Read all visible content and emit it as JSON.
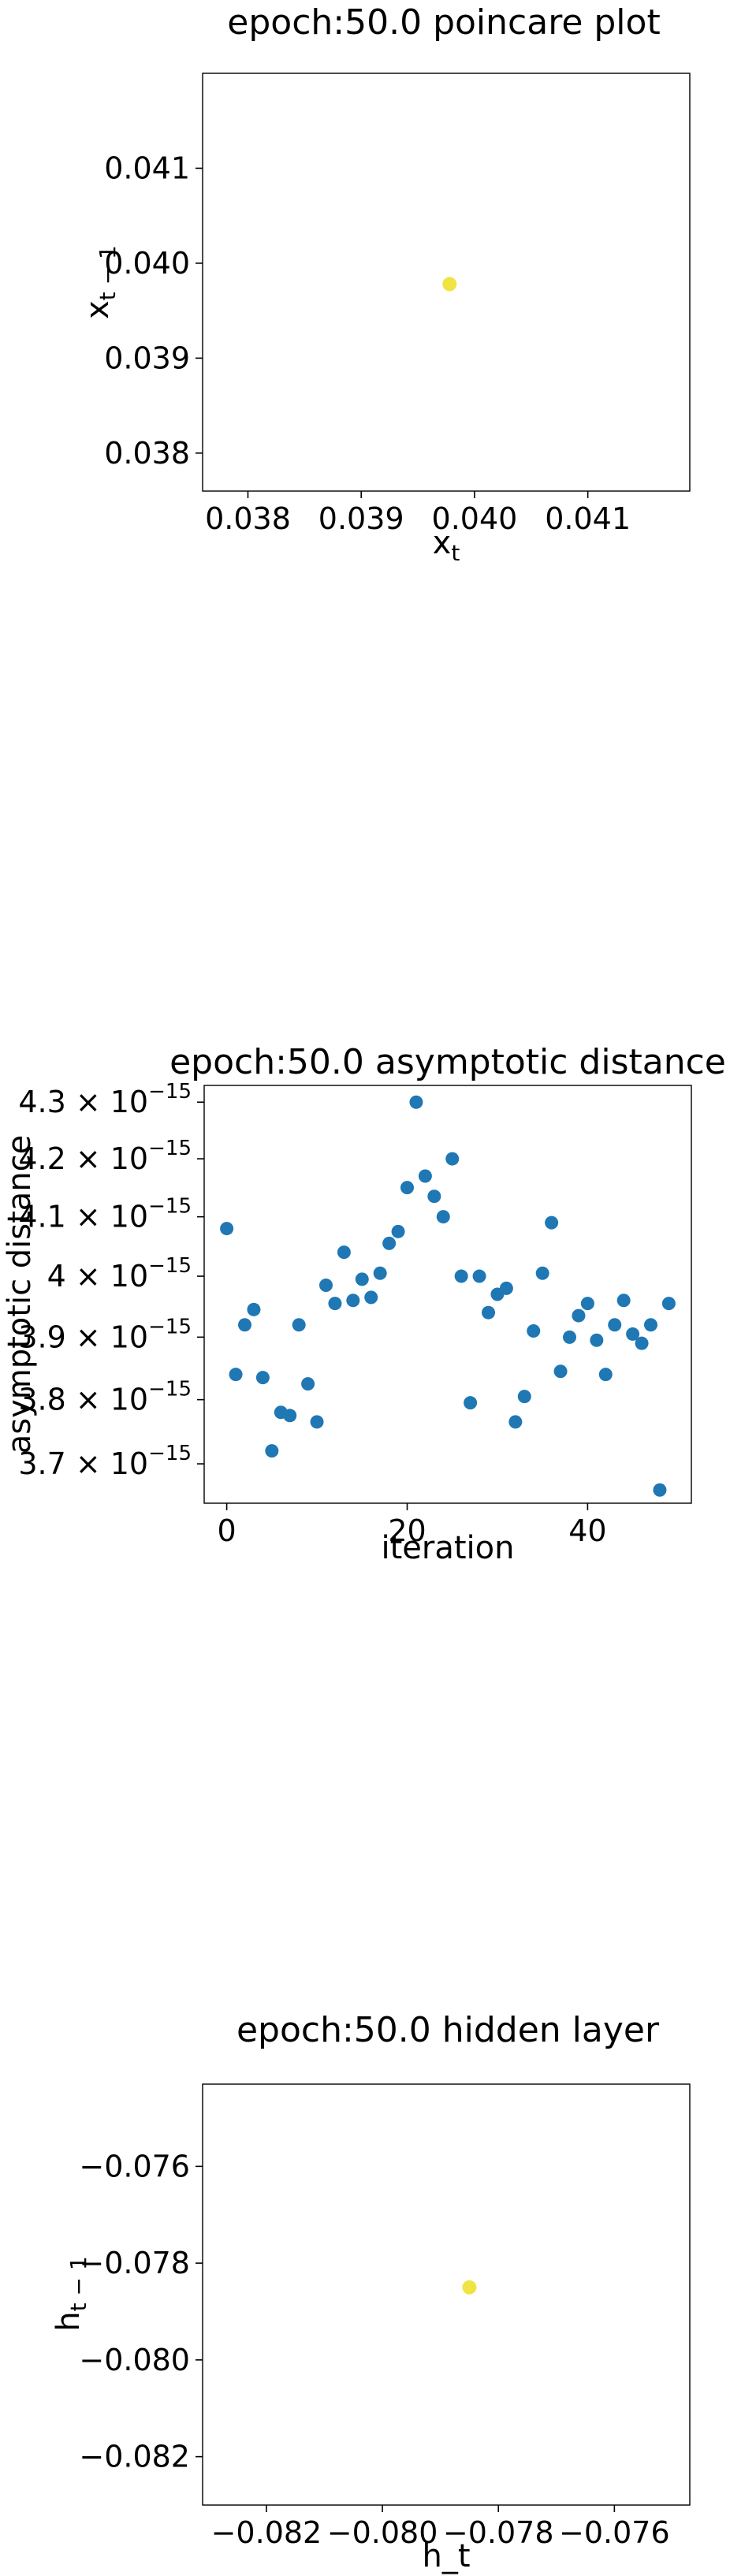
{
  "chart_data": [
    {
      "type": "scatter",
      "title": "epoch:50.0 poincare plot",
      "xlabel": "x_t",
      "ylabel": "x_{t-1}",
      "xlim": [
        0.0376,
        0.0419
      ],
      "ylim": [
        0.0376,
        0.042
      ],
      "x_ticks": [
        0.038,
        0.039,
        0.04,
        0.041
      ],
      "x_tick_labels": [
        "0.038",
        "0.039",
        "0.040",
        "0.041"
      ],
      "y_ticks": [
        0.038,
        0.039,
        0.04,
        0.041
      ],
      "y_tick_labels": [
        "0.038",
        "0.039",
        "0.040",
        "0.041"
      ],
      "grid": false,
      "point_color": "#f0e442",
      "points": [
        {
          "x": 0.03978,
          "y": 0.03978
        }
      ]
    },
    {
      "type": "scatter",
      "title": "epoch:50.0 asymptotic distance",
      "xlabel": "iteration",
      "ylabel": "asymptotic distance",
      "y_scale": "log",
      "xlim": [
        -2.5,
        51.5
      ],
      "ylim": [
        3.64e-15,
        4.33e-15
      ],
      "x_ticks": [
        0,
        20,
        40
      ],
      "x_tick_labels": [
        "0",
        "20",
        "40"
      ],
      "y_ticks": [
        3.7e-15,
        3.8e-15,
        3.9e-15,
        4e-15,
        4.1e-15,
        4.2e-15,
        4.3e-15
      ],
      "y_tick_mantissas": [
        "3.7",
        "3.8",
        "3.9",
        "4",
        "4.1",
        "4.2",
        "4.3"
      ],
      "y_tick_base": "10",
      "y_tick_exponent": "−15",
      "grid": false,
      "point_color": "#1f77b4",
      "x": [
        0,
        1,
        2,
        3,
        4,
        5,
        6,
        7,
        8,
        9,
        10,
        11,
        12,
        13,
        14,
        15,
        16,
        17,
        18,
        19,
        20,
        21,
        22,
        23,
        24,
        25,
        26,
        27,
        28,
        29,
        30,
        31,
        32,
        33,
        34,
        35,
        36,
        37,
        38,
        39,
        40,
        41,
        42,
        43,
        44,
        45,
        46,
        47,
        48,
        49
      ],
      "y": [
        4.08e-15,
        3.84e-15,
        3.92e-15,
        3.945e-15,
        3.835e-15,
        3.72e-15,
        3.78e-15,
        3.775e-15,
        3.92e-15,
        3.825e-15,
        3.765e-15,
        3.985e-15,
        3.955e-15,
        4.04e-15,
        3.96e-15,
        3.995e-15,
        3.965e-15,
        4.005e-15,
        4.055e-15,
        4.075e-15,
        4.15e-15,
        4.3e-15,
        4.17e-15,
        4.135e-15,
        4.1e-15,
        4.2e-15,
        4e-15,
        3.795e-15,
        4e-15,
        3.94e-15,
        3.97e-15,
        3.98e-15,
        3.765e-15,
        3.805e-15,
        3.91e-15,
        4.005e-15,
        4.09e-15,
        3.845e-15,
        3.9e-15,
        3.935e-15,
        3.955e-15,
        3.895e-15,
        3.84e-15,
        3.92e-15,
        3.96e-15,
        3.905e-15,
        3.89e-15,
        3.92e-15,
        3.66e-15,
        3.955e-15
      ]
    },
    {
      "type": "scatter",
      "title": "epoch:50.0 hidden layer",
      "xlabel": "h_t",
      "ylabel": "h_{t-1}",
      "xlim": [
        -0.0831,
        -0.0747
      ],
      "ylim": [
        -0.083,
        -0.0743
      ],
      "x_ticks": [
        -0.082,
        -0.08,
        -0.078,
        -0.076
      ],
      "x_tick_labels": [
        "−0.082",
        "−0.080",
        "−0.078",
        "−0.076"
      ],
      "y_ticks": [
        -0.082,
        -0.08,
        -0.078,
        -0.076
      ],
      "y_tick_labels": [
        "−0.082",
        "−0.080",
        "−0.078",
        "−0.076"
      ],
      "grid": false,
      "point_color": "#f0e442",
      "points": [
        {
          "x": -0.0785,
          "y": -0.0785
        }
      ]
    }
  ]
}
